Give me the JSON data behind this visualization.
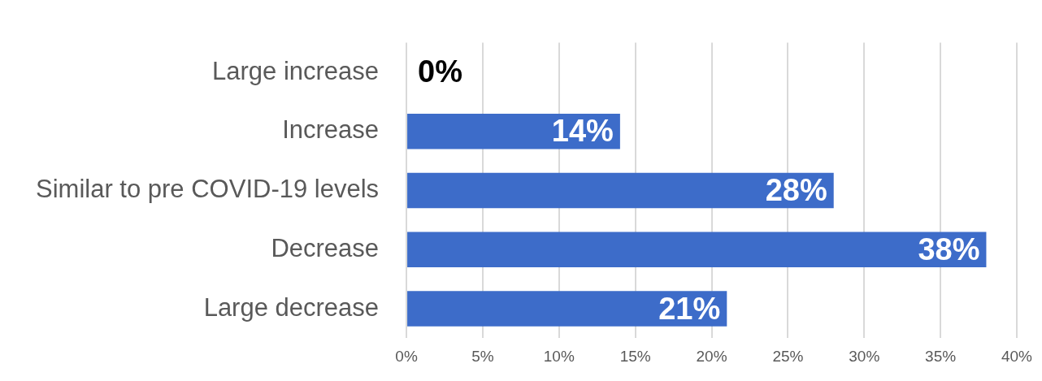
{
  "chart_data": {
    "type": "bar",
    "orientation": "horizontal",
    "categories": [
      "Large increase",
      "Increase",
      "Similar to pre COVID-19 levels",
      "Decrease",
      "Large decrease"
    ],
    "values": [
      0,
      14,
      28,
      38,
      21
    ],
    "color": "#3d6cc9",
    "value_labels": [
      "0%",
      "14%",
      "28%",
      "38%",
      "21%"
    ],
    "xlim": [
      0,
      40
    ],
    "xticks": [
      {
        "value": 0,
        "label": "0%"
      },
      {
        "value": 5,
        "label": "5%"
      },
      {
        "value": 10,
        "label": "10%"
      },
      {
        "value": 15,
        "label": "15%"
      },
      {
        "value": 20,
        "label": "20%"
      },
      {
        "value": 25,
        "label": "25%"
      },
      {
        "value": 30,
        "label": "30%"
      },
      {
        "value": 35,
        "label": "35%"
      },
      {
        "value": 40,
        "label": "40%"
      }
    ],
    "grid": "x",
    "legend": false
  }
}
